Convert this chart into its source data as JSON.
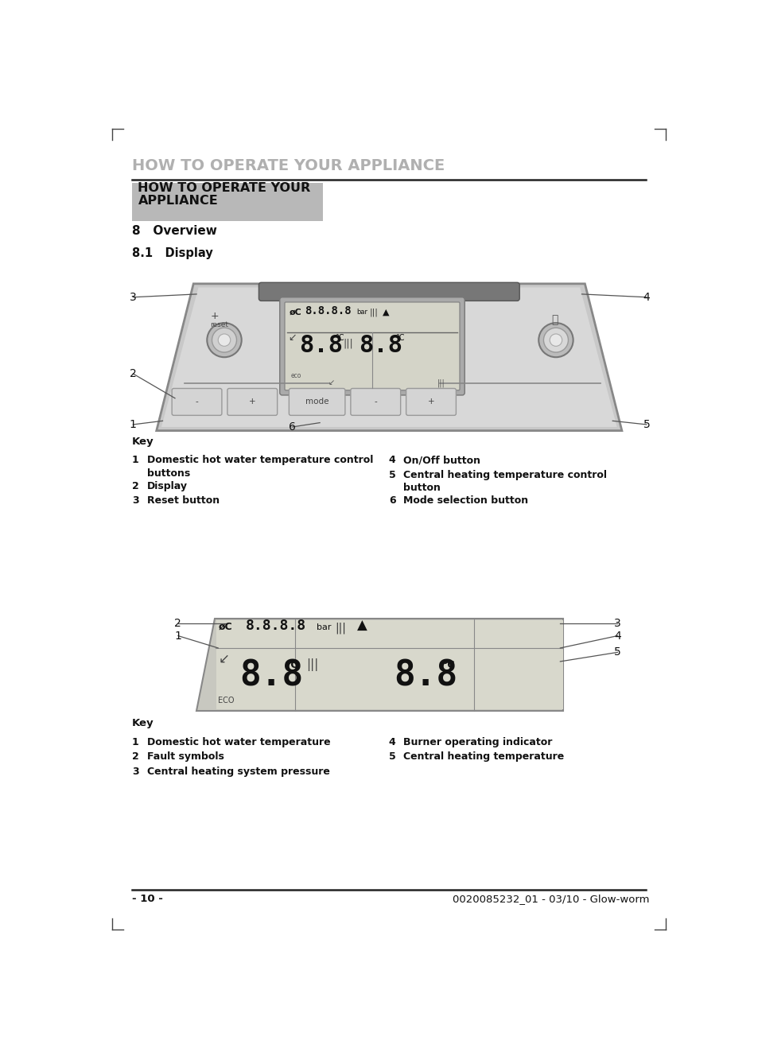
{
  "page_title": "HOW TO OPERATE YOUR APPLIANCE",
  "header_box_text": "HOW TO OPERATE YOUR\nAPPLIANCE",
  "section_title": "8   Overview",
  "subsection_title": "8.1   Display",
  "key1_label": "Key",
  "key1_items_left": [
    [
      "1",
      "Domestic hot water temperature control\nbuttons"
    ],
    [
      "2",
      "Display"
    ],
    [
      "3",
      "Reset button"
    ]
  ],
  "key1_items_right": [
    [
      "4",
      "On/Off button"
    ],
    [
      "5",
      "Central heating temperature control\nbutton"
    ],
    [
      "6",
      "Mode selection button"
    ]
  ],
  "key2_label": "Key",
  "key2_items_left": [
    [
      "1",
      "Domestic hot water temperature"
    ],
    [
      "2",
      "Fault symbols"
    ],
    [
      "3",
      "Central heating system pressure"
    ]
  ],
  "key2_items_right": [
    [
      "4",
      "Burner operating indicator"
    ],
    [
      "5",
      "Central heating temperature"
    ]
  ],
  "footer_left": "- 10 -",
  "footer_right": "0020085232_01 - 03/10 - Glow-worm",
  "bg_color": "#ffffff",
  "panel_body_color": "#cccccc",
  "panel_dark_color": "#888888",
  "lcd_bg_color": "#d4d4c8",
  "lcd_border_color": "#999999",
  "btn_color": "#d0d0d0",
  "header_box_color": "#b8b8b8",
  "title_gray": "#b0b0b0",
  "text_color": "#111111",
  "line_color": "#333333"
}
